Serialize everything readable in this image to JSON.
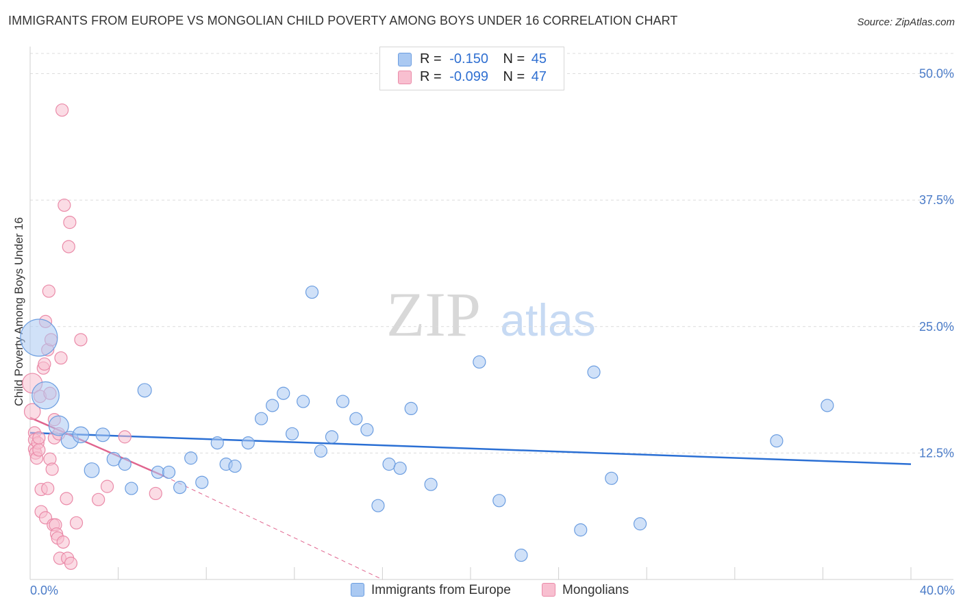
{
  "header": {
    "title": "IMMIGRANTS FROM EUROPE VS MONGOLIAN CHILD POVERTY AMONG BOYS UNDER 16 CORRELATION CHART",
    "source": "Source: ZipAtlas.com"
  },
  "watermark": {
    "zip": "ZIP",
    "atlas": "atlas"
  },
  "legend": {
    "rows": [
      {
        "r_label": "R =",
        "r_value": "-0.150",
        "n_label": "N =",
        "n_value": "45",
        "color": "#a8c8f0"
      },
      {
        "r_label": "R =",
        "r_value": "-0.099",
        "n_label": "N =",
        "n_value": "47",
        "color": "#f7b6c8"
      }
    ]
  },
  "bottom_legend": {
    "europe": "Immigrants from Europe",
    "mongolians": "Mongolians"
  },
  "colors": {
    "blue_fill": "#aac9f2",
    "blue_stroke": "#6b9de0",
    "blue_line": "#2a6fd4",
    "pink_fill": "#f8bfd0",
    "pink_stroke": "#ea8aa8",
    "pink_line": "#e0648e"
  },
  "chart_data": {
    "type": "scatter",
    "title": "IMMIGRANTS FROM EUROPE VS MONGOLIAN CHILD POVERTY AMONG BOYS UNDER 16 CORRELATION CHART",
    "xlabel": "",
    "ylabel": "Child Poverty Among Boys Under 16",
    "xlim": [
      0,
      40
    ],
    "ylim": [
      0,
      52
    ],
    "x_tick_labels": [
      "0.0%",
      "40.0%"
    ],
    "y_ticks": [
      12.5,
      25.0,
      37.5,
      50.0
    ],
    "y_tick_labels": [
      "12.5%",
      "25.0%",
      "37.5%",
      "50.0%"
    ],
    "grid": true,
    "series": [
      {
        "name": "Immigrants from Europe",
        "points": [
          [
            0.4,
            23.9,
            3
          ],
          [
            0.7,
            18.2,
            2.2
          ],
          [
            1.3,
            15.2,
            1.6
          ],
          [
            1.8,
            13.8,
            1.4
          ],
          [
            2.3,
            14.3,
            1.3
          ],
          [
            2.8,
            10.8,
            1.2
          ],
          [
            3.3,
            14.3,
            1.1
          ],
          [
            3.8,
            11.9,
            1.1
          ],
          [
            4.3,
            11.4,
            1
          ],
          [
            4.6,
            9.0,
            1
          ],
          [
            5.2,
            18.7,
            1.1
          ],
          [
            5.8,
            10.6,
            1
          ],
          [
            6.3,
            10.6,
            1
          ],
          [
            6.8,
            9.1,
            1
          ],
          [
            7.3,
            12.0,
            1
          ],
          [
            7.8,
            9.6,
            1
          ],
          [
            8.5,
            13.5,
            1
          ],
          [
            8.9,
            11.4,
            1
          ],
          [
            9.3,
            11.2,
            1
          ],
          [
            9.9,
            13.5,
            1
          ],
          [
            10.5,
            15.9,
            1
          ],
          [
            11.0,
            17.2,
            1
          ],
          [
            11.5,
            18.4,
            1
          ],
          [
            11.9,
            14.4,
            1
          ],
          [
            12.4,
            17.6,
            1
          ],
          [
            12.8,
            28.4,
            1
          ],
          [
            13.2,
            12.7,
            1
          ],
          [
            13.7,
            14.1,
            1
          ],
          [
            14.2,
            17.6,
            1
          ],
          [
            14.8,
            15.9,
            1
          ],
          [
            15.3,
            14.8,
            1
          ],
          [
            15.8,
            7.3,
            1
          ],
          [
            16.3,
            11.4,
            1
          ],
          [
            16.8,
            11.0,
            1
          ],
          [
            17.3,
            16.9,
            1
          ],
          [
            18.2,
            9.4,
            1
          ],
          [
            20.4,
            21.5,
            1
          ],
          [
            21.3,
            7.8,
            1
          ],
          [
            22.3,
            2.4,
            1
          ],
          [
            25.0,
            4.9,
            1
          ],
          [
            25.6,
            20.5,
            1
          ],
          [
            26.4,
            10.0,
            1
          ],
          [
            27.7,
            5.5,
            1
          ],
          [
            33.9,
            13.7,
            1
          ],
          [
            36.2,
            17.2,
            1
          ]
        ]
      },
      {
        "name": "Mongolians",
        "points": [
          [
            0.1,
            19.4,
            1.6
          ],
          [
            0.1,
            16.6,
            1.3
          ],
          [
            0.2,
            14.5,
            1
          ],
          [
            0.2,
            13.8,
            1
          ],
          [
            0.2,
            12.9,
            1
          ],
          [
            0.25,
            12.5,
            1
          ],
          [
            0.3,
            12.0,
            1
          ],
          [
            0.35,
            13.5,
            1
          ],
          [
            0.4,
            14.0,
            1
          ],
          [
            0.4,
            12.8,
            1
          ],
          [
            0.45,
            18.1,
            1
          ],
          [
            0.5,
            8.9,
            1
          ],
          [
            0.5,
            6.7,
            1
          ],
          [
            0.6,
            20.9,
            1
          ],
          [
            0.65,
            21.3,
            1
          ],
          [
            0.7,
            25.5,
            1
          ],
          [
            0.7,
            6.1,
            1
          ],
          [
            0.8,
            9.0,
            1
          ],
          [
            0.8,
            22.7,
            1
          ],
          [
            0.85,
            28.5,
            1
          ],
          [
            0.9,
            11.9,
            1
          ],
          [
            0.9,
            18.4,
            1
          ],
          [
            0.95,
            23.7,
            1
          ],
          [
            1.0,
            10.9,
            1
          ],
          [
            1.05,
            5.4,
            1
          ],
          [
            1.1,
            14.0,
            1
          ],
          [
            1.1,
            15.8,
            1
          ],
          [
            1.15,
            5.4,
            1
          ],
          [
            1.2,
            4.5,
            1
          ],
          [
            1.25,
            4.1,
            1
          ],
          [
            1.3,
            14.4,
            1
          ],
          [
            1.35,
            2.1,
            1
          ],
          [
            1.4,
            21.9,
            1
          ],
          [
            1.45,
            46.4,
            1
          ],
          [
            1.5,
            3.7,
            1
          ],
          [
            1.55,
            37.0,
            1
          ],
          [
            1.65,
            8.0,
            1
          ],
          [
            1.7,
            2.1,
            1
          ],
          [
            1.75,
            32.9,
            1
          ],
          [
            1.8,
            35.3,
            1
          ],
          [
            1.85,
            1.6,
            1
          ],
          [
            2.1,
            5.6,
            1
          ],
          [
            2.3,
            23.7,
            1
          ],
          [
            3.1,
            7.9,
            1
          ],
          [
            3.5,
            9.2,
            1
          ],
          [
            4.3,
            14.1,
            1
          ],
          [
            5.7,
            8.5,
            1
          ]
        ]
      }
    ],
    "trend_lines": [
      {
        "series": "Immigrants from Europe",
        "x": [
          0,
          40
        ],
        "y": [
          14.5,
          11.4
        ],
        "style": "solid"
      },
      {
        "series": "Mongolians",
        "x": [
          0,
          6.1
        ],
        "y": [
          16.0,
          10.2
        ],
        "style": "solid"
      },
      {
        "series": "Mongolians",
        "x": [
          6.1,
          16.0
        ],
        "y": [
          10.2,
          0.0
        ],
        "style": "dashed"
      }
    ]
  }
}
